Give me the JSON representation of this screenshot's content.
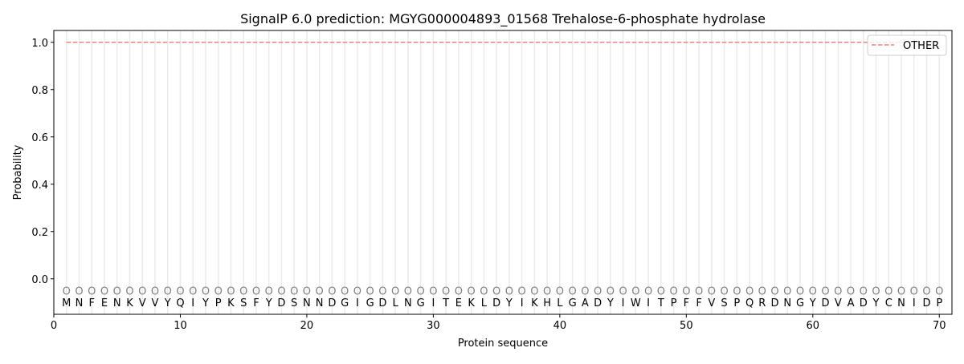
{
  "chart_data": {
    "type": "line",
    "title": "SignalP 6.0 prediction: MGYG000004893_01568 Trehalose-6-phosphate hydrolase",
    "xlabel": "Protein sequence",
    "ylabel": "Probability",
    "xlim": [
      0,
      71
    ],
    "ylim": [
      -0.15,
      1.05
    ],
    "xticks": [
      0,
      10,
      20,
      30,
      40,
      50,
      60,
      70
    ],
    "yticks": [
      0.0,
      0.2,
      0.4,
      0.6,
      0.8,
      1.0
    ],
    "ytick_labels": [
      "0.0",
      "0.2",
      "0.4",
      "0.6",
      "0.8",
      "1.0"
    ],
    "grid": "vertical lines at each residue",
    "legend_position": "top-right",
    "series": [
      {
        "name": "OTHER",
        "color": "#f08080",
        "style": "dashed",
        "x_start": 1,
        "x_end": 70,
        "value": 1.0
      }
    ],
    "sequence": [
      "M",
      "N",
      "F",
      "E",
      "N",
      "K",
      "V",
      "V",
      "Y",
      "Q",
      "I",
      "Y",
      "P",
      "K",
      "S",
      "F",
      "Y",
      "D",
      "S",
      "N",
      "N",
      "D",
      "G",
      "I",
      "G",
      "D",
      "L",
      "N",
      "G",
      "I",
      "T",
      "E",
      "K",
      "L",
      "D",
      "Y",
      "I",
      "K",
      "H",
      "L",
      "G",
      "A",
      "D",
      "Y",
      "I",
      "W",
      "I",
      "T",
      "P",
      "F",
      "F",
      "V",
      "S",
      "P",
      "Q",
      "R",
      "D",
      "N",
      "G",
      "Y",
      "D",
      "V",
      "A",
      "D",
      "Y",
      "C",
      "N",
      "I",
      "D",
      "P"
    ],
    "residue_labels": "O",
    "residue_label_value": -0.05,
    "residue_label_color": "#808080"
  }
}
